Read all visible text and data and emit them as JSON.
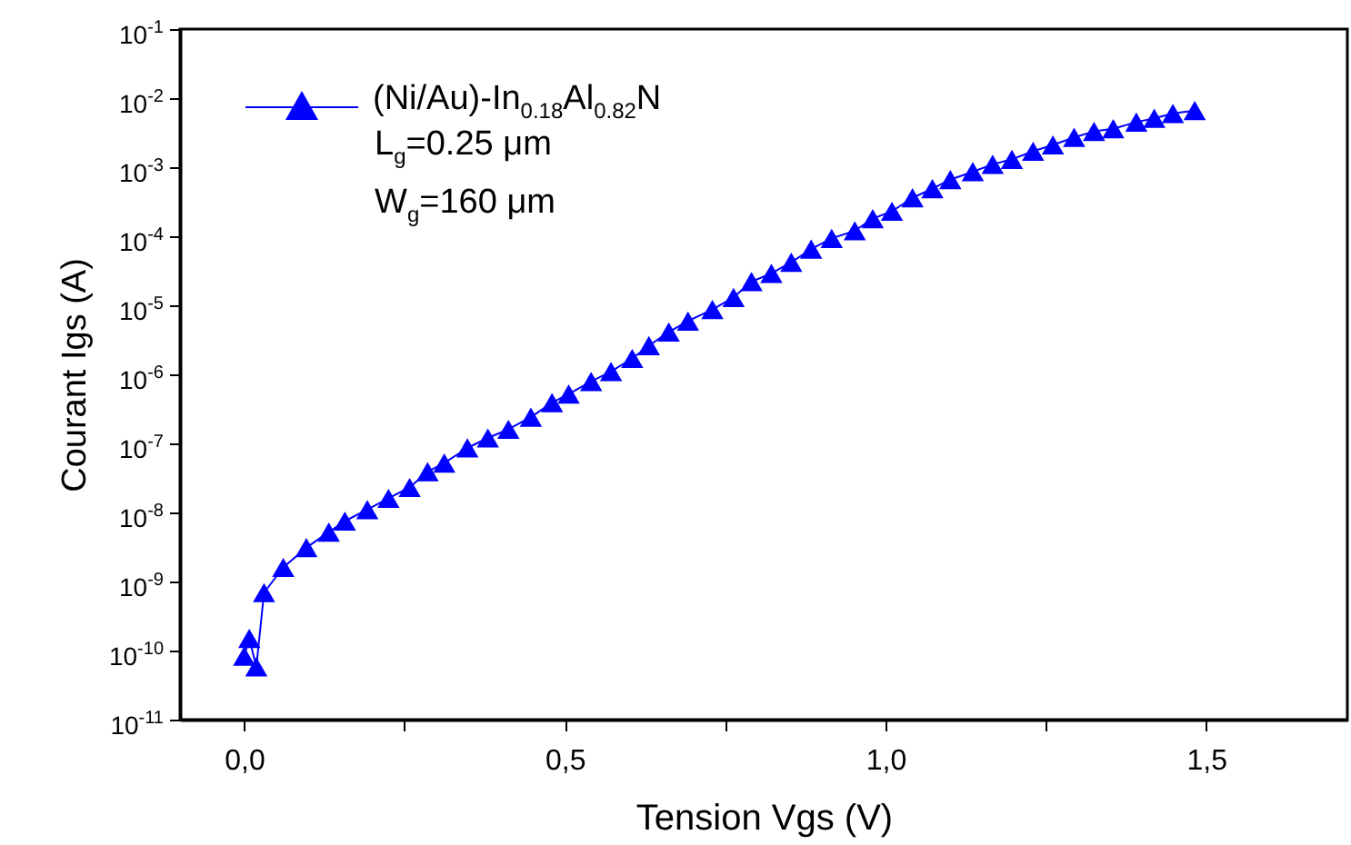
{
  "chart_data": {
    "type": "line",
    "xlabel": "Tension Vgs (V)",
    "ylabel": "Courant Igs (A)",
    "log": "y",
    "legend": "top left",
    "marker": "triangle",
    "line_style": "solid",
    "grid": false,
    "xlim": [
      -0.1,
      1.72
    ],
    "ylim": [
      1e-11,
      0.1
    ],
    "xticks": [
      {
        "value": 0,
        "label": "0,0"
      },
      {
        "value": 0.25,
        "label": null
      },
      {
        "value": 0.5,
        "label": "0,5"
      },
      {
        "value": 0.75,
        "label": null
      },
      {
        "value": 1,
        "label": "1,0"
      },
      {
        "value": 1.25,
        "label": null
      },
      {
        "value": 1.5,
        "label": "1,5"
      }
    ],
    "yticks": [
      {
        "value": 1e-11,
        "label": "10$^{-11}$"
      },
      {
        "value": 1e-10,
        "label": "10$^{-10}$"
      },
      {
        "value": 1e-09,
        "label": "10$^{-9}$"
      },
      {
        "value": 1e-08,
        "label": "10$^{-8}$"
      },
      {
        "value": 1e-07,
        "label": "10$^{-7}$"
      },
      {
        "value": 1e-06,
        "label": "10$^{-6}$"
      },
      {
        "value": 1e-05,
        "label": "10$^{-5}$"
      },
      {
        "value": 0.0001,
        "label": "10$^{-4}$"
      },
      {
        "value": 0.001,
        "label": "10$^{-3}$"
      },
      {
        "value": 0.01,
        "label": "10$^{-2}$"
      },
      {
        "value": 0.1,
        "label": "10$^{-1}$"
      }
    ],
    "annotations": [
      "L$_{g}$=0.25 μm",
      "W$_{g}$=160 μm"
    ],
    "series": [
      {
        "name": "(Ni/Au)-In$_{0.18}$Al$_{0.82}$N",
        "color": "#0000ff",
        "x": [
          0.0,
          0.008,
          0.019,
          0.031,
          0.061,
          0.097,
          0.132,
          0.157,
          0.192,
          0.225,
          0.258,
          0.286,
          0.312,
          0.348,
          0.38,
          0.412,
          0.447,
          0.48,
          0.506,
          0.541,
          0.572,
          0.605,
          0.631,
          0.662,
          0.692,
          0.73,
          0.763,
          0.791,
          0.822,
          0.853,
          0.884,
          0.916,
          0.952,
          0.98,
          1.01,
          1.042,
          1.073,
          1.101,
          1.136,
          1.167,
          1.197,
          1.23,
          1.261,
          1.294,
          1.325,
          1.355,
          1.391,
          1.419,
          1.448,
          1.482
        ],
        "values": [
          8.3e-11,
          1.5e-10,
          5.8e-11,
          6.9e-10,
          1.6e-09,
          3.1e-09,
          5.2e-09,
          7.5e-09,
          1.1e-08,
          1.6e-08,
          2.3e-08,
          3.9e-08,
          5.2e-08,
          8.6e-08,
          1.2e-07,
          1.6e-07,
          2.4e-07,
          3.9e-07,
          5.2e-07,
          7.9e-07,
          1.1e-06,
          1.7e-06,
          2.6e-06,
          4.1e-06,
          5.9e-06,
          8.7e-06,
          1.3e-05,
          2.2e-05,
          2.9e-05,
          4.2e-05,
          6.5e-05,
          9.3e-05,
          0.00012,
          0.00018,
          0.00023,
          0.00036,
          0.00049,
          0.00066,
          0.00086,
          0.0011,
          0.0013,
          0.0017,
          0.0021,
          0.0027,
          0.0033,
          0.0036,
          0.0045,
          0.0051,
          0.006,
          0.0066
        ]
      }
    ]
  }
}
